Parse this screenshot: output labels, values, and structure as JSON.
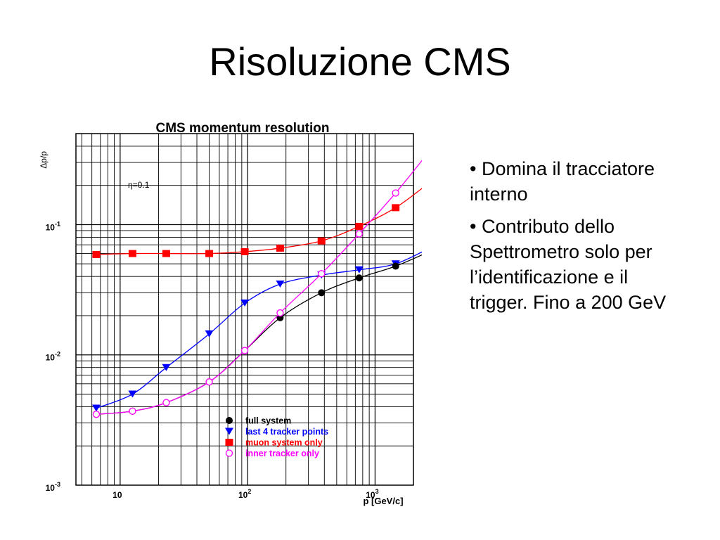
{
  "slide": {
    "title": "Risoluzione CMS",
    "bullets": [
      "• Domina il tracciatore interno",
      "• Contributo dello Spettrometro solo per l’identificazione e il trigger. Fino a 200 GeV"
    ]
  },
  "chart_data": {
    "type": "line",
    "title": "CMS momentum resolution",
    "xlabel": "p [GeV/c]",
    "ylabel": "Δp/p",
    "x_scale": "log",
    "y_scale": "log",
    "xlim": [
      4.5,
      2000
    ],
    "ylim": [
      0.001,
      0.5
    ],
    "x_ticks": [
      {
        "value": 10,
        "label": "10"
      },
      {
        "value": 100,
        "label": "10^2"
      },
      {
        "value": 1000,
        "label": "10^3"
      }
    ],
    "y_ticks": [
      {
        "value": 0.001,
        "label": "10^-3"
      },
      {
        "value": 0.01,
        "label": "10^-2"
      },
      {
        "value": 0.1,
        "label": "10^-1"
      }
    ],
    "annotation": "η=0.1",
    "grid": true,
    "legend_position": "bottom-right",
    "series": [
      {
        "name": "full system",
        "color": "#000000",
        "marker": "circle",
        "x": [
          6.5,
          12.5,
          23,
          50,
          95,
          180,
          380,
          750,
          1450,
          2750
        ],
        "y": [
          0.0035,
          0.0037,
          0.0043,
          0.0062,
          0.0108,
          0.0193,
          0.03,
          0.039,
          0.048,
          0.063
        ]
      },
      {
        "name": "last 4 tracker points",
        "color": "#0000ff",
        "marker": "triangle-down",
        "x": [
          6.5,
          12.5,
          23,
          50,
          95,
          180,
          380,
          750,
          1450,
          2750
        ],
        "y": [
          0.0039,
          0.005,
          0.008,
          0.0145,
          0.025,
          0.035,
          0.041,
          0.045,
          0.05,
          0.067
        ]
      },
      {
        "name": "muon system only",
        "color": "#ff0000",
        "marker": "square",
        "x": [
          6.5,
          12.5,
          23,
          50,
          95,
          180,
          380,
          750,
          1450,
          2750
        ],
        "y": [
          0.059,
          0.06,
          0.06,
          0.06,
          0.062,
          0.066,
          0.075,
          0.097,
          0.135,
          0.215
        ]
      },
      {
        "name": "inner tracker only",
        "color": "#ff00ff",
        "marker": "open-circle",
        "x": [
          6.5,
          12.5,
          23,
          50,
          95,
          180,
          380,
          750,
          1450,
          2750
        ],
        "y": [
          0.0035,
          0.0037,
          0.0043,
          0.0062,
          0.0108,
          0.021,
          0.042,
          0.085,
          0.175,
          0.38
        ]
      }
    ]
  }
}
